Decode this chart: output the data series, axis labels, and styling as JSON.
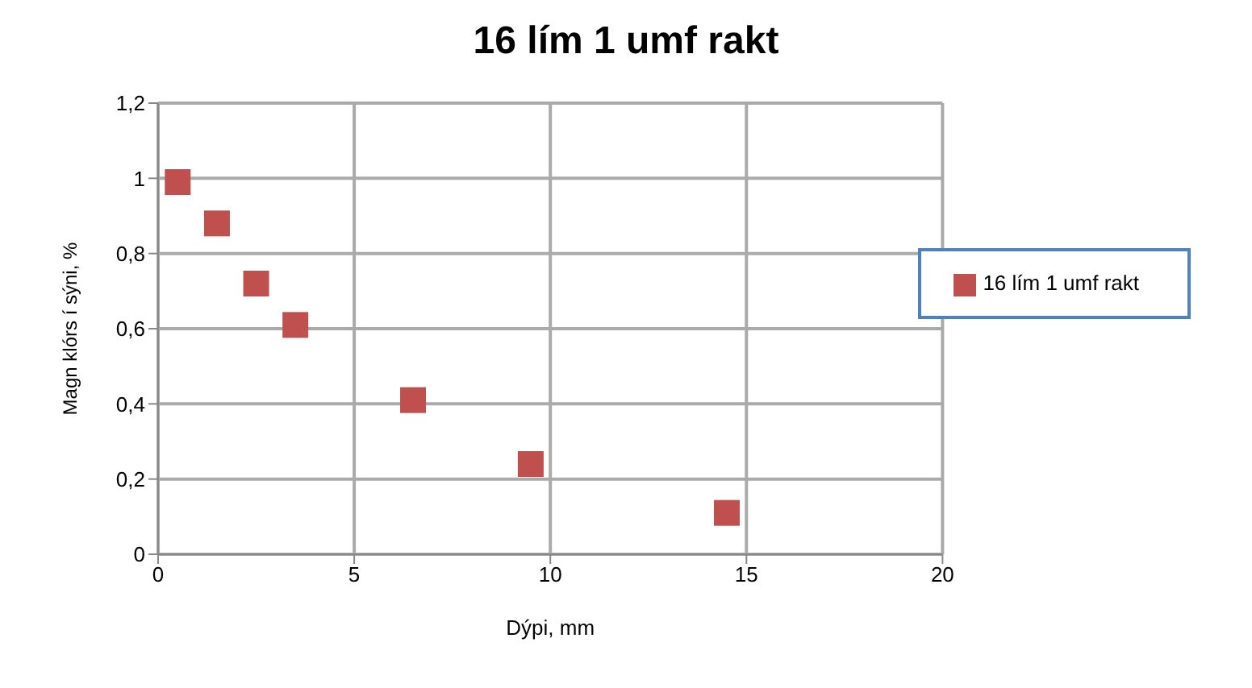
{
  "chart_data": {
    "type": "scatter",
    "title": "16 lím 1 umf rakt",
    "xlabel": "Dýpi, mm",
    "ylabel": "Magn klórs í sýni, %",
    "x": [
      0.5,
      1.5,
      2.5,
      3.5,
      6.5,
      9.5,
      14.5
    ],
    "series": [
      {
        "name": "16 lím 1 umf rakt",
        "color": "#c0504d",
        "values": [
          0.99,
          0.88,
          0.72,
          0.61,
          0.41,
          0.24,
          0.11
        ]
      }
    ],
    "xlim": [
      0,
      20
    ],
    "xticks": [
      0,
      5,
      10,
      15,
      20
    ],
    "ylim": [
      0,
      1.2
    ],
    "yticks": [
      0,
      {
        "value": 0.2,
        "label": "0,2"
      },
      {
        "value": 0.4,
        "label": "0,4"
      },
      {
        "value": 0.6,
        "label": "0,6"
      },
      {
        "value": 0.8,
        "label": "0,8"
      },
      1,
      {
        "value": 1.2,
        "label": "1,2"
      }
    ],
    "grid": true,
    "legend": "top right",
    "marker": "square"
  }
}
